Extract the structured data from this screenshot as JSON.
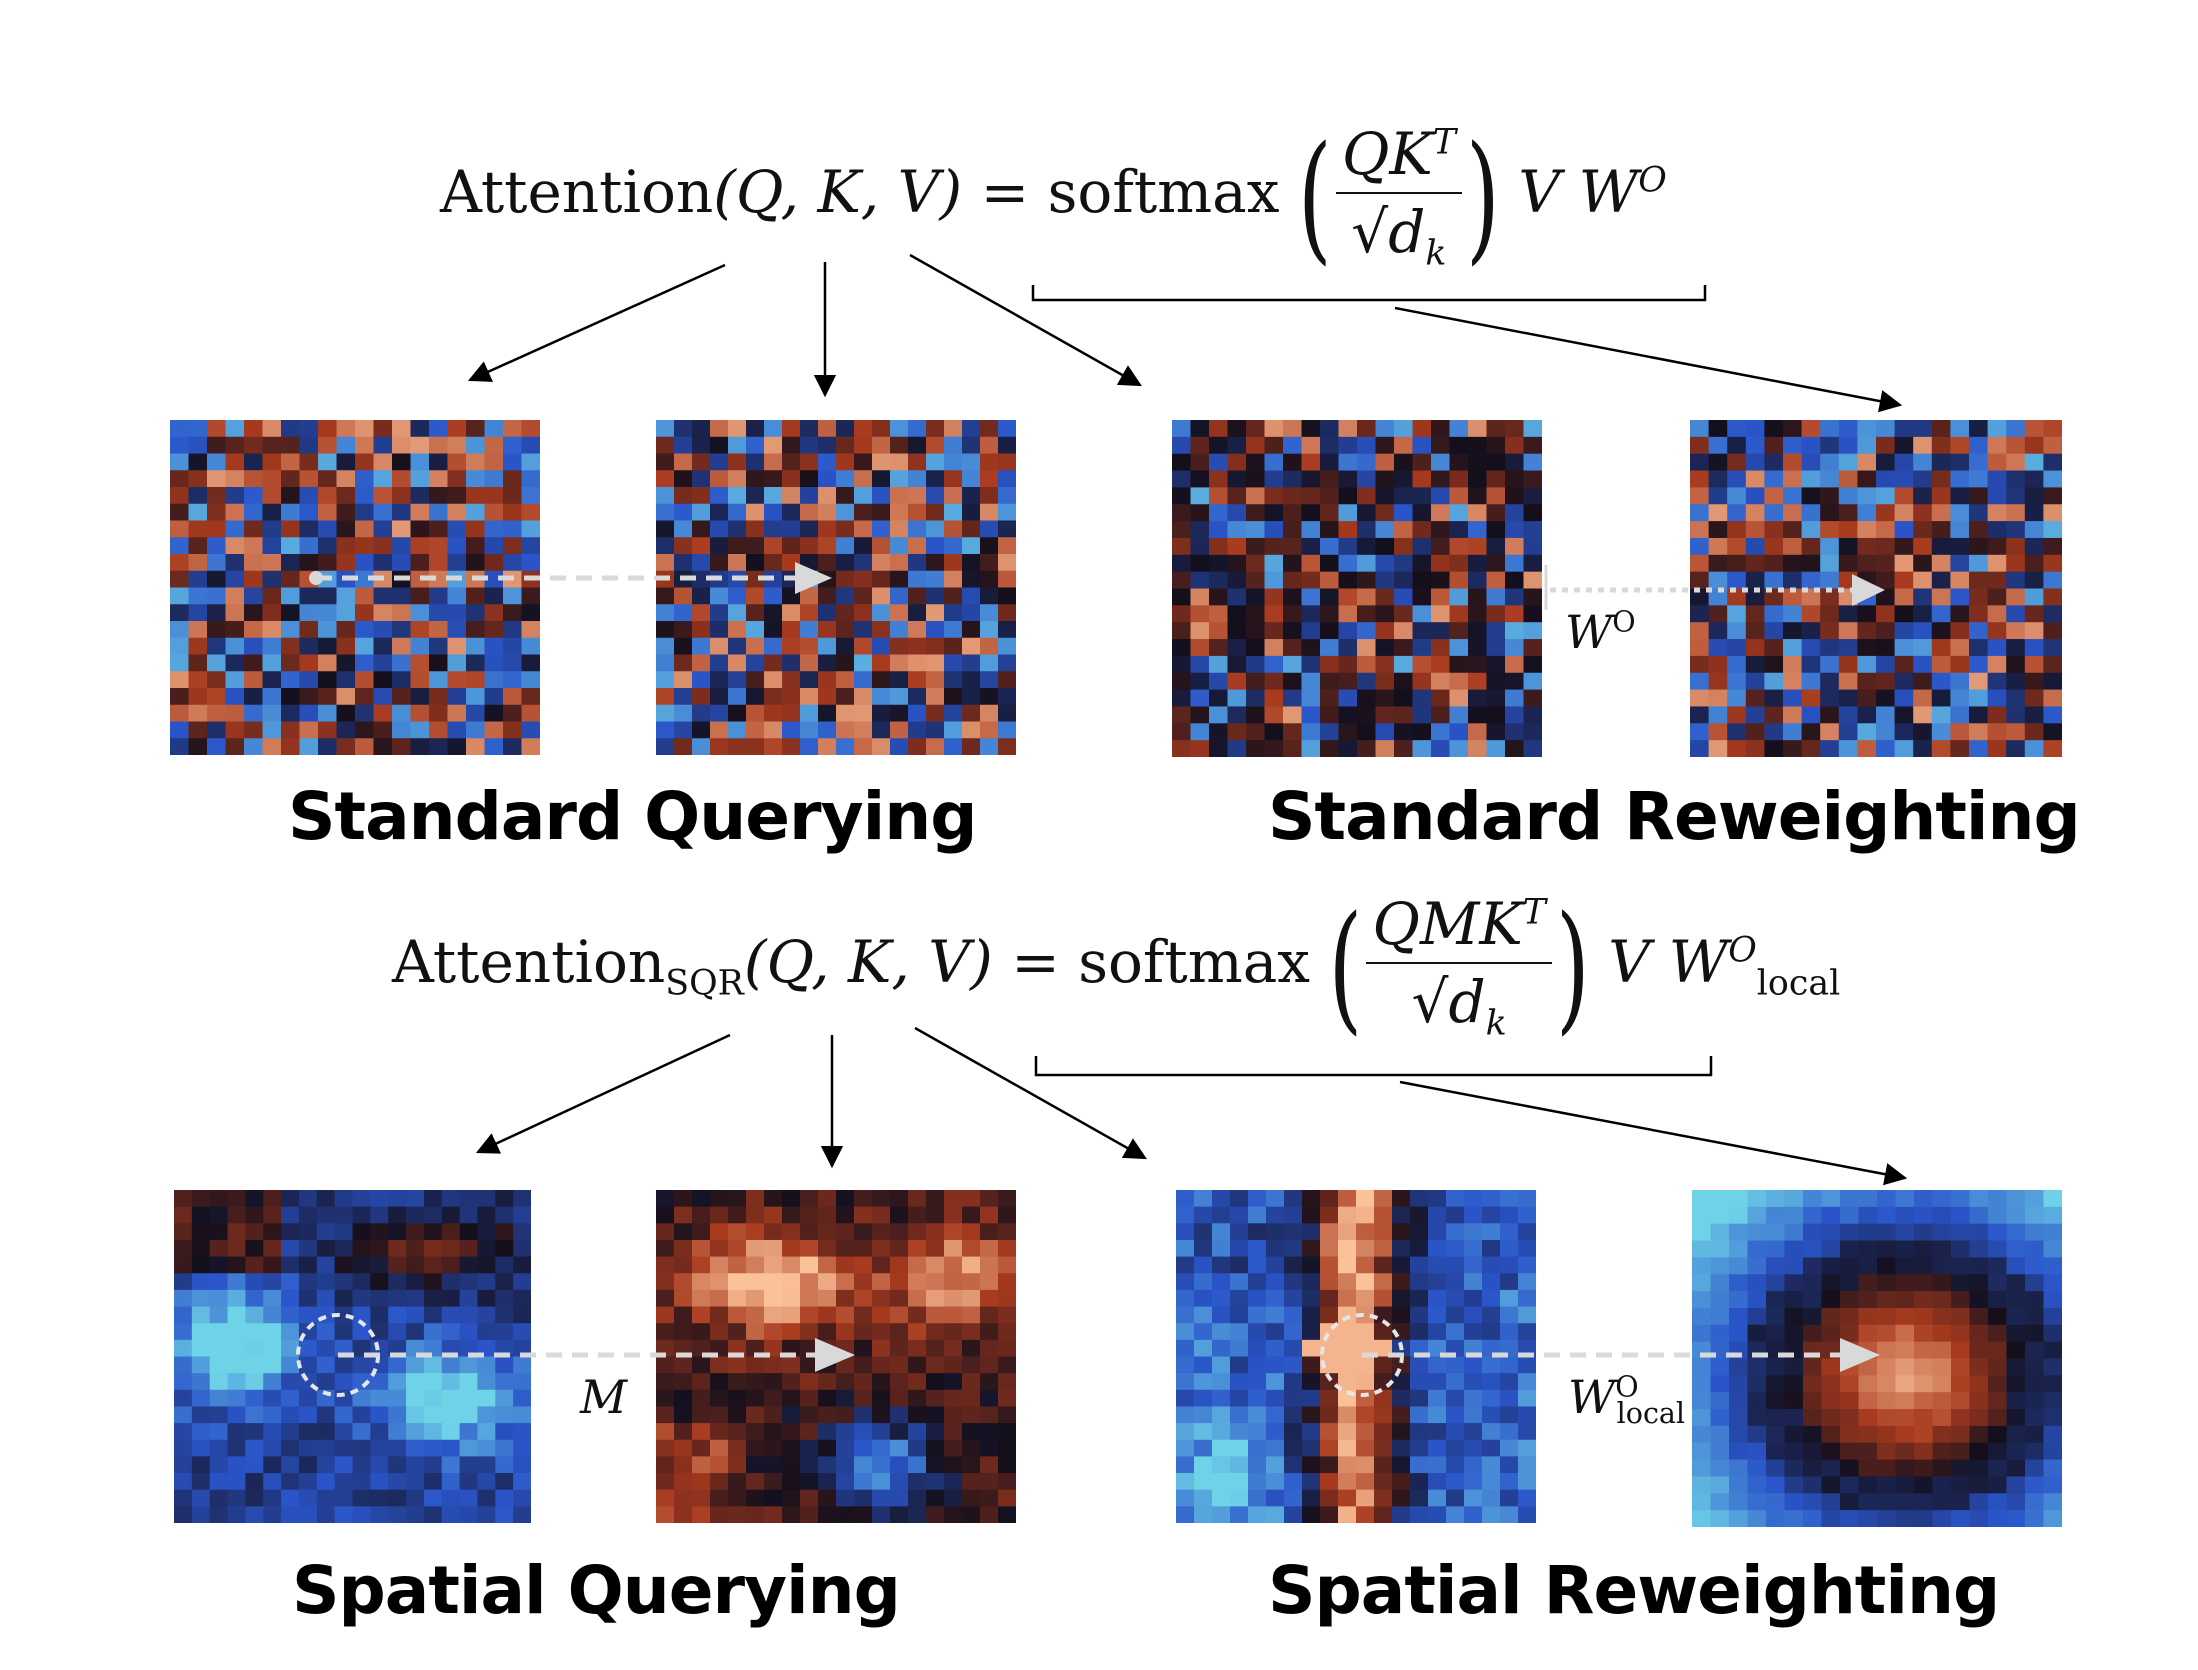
{
  "equations": {
    "standard": {
      "lhs_word": "Attention",
      "args": "(Q, K, V)",
      "equals": "=",
      "fn": "softmax",
      "numerator": "QK",
      "numerator_sup": "T",
      "denominator": "√d",
      "denominator_sub": "k",
      "tail_v": "V",
      "tail_w": "W",
      "tail_w_sup": "O",
      "tail_w_sub": ""
    },
    "sqr": {
      "lhs_word": "Attention",
      "lhs_sub": "SQR",
      "args": "(Q, K, V)",
      "equals": "=",
      "fn": "softmax",
      "numerator": "QMK",
      "numerator_sup": "T",
      "denominator": "√d",
      "denominator_sub": "k",
      "tail_v": "V",
      "tail_w": "W",
      "tail_w_sup": "O",
      "tail_w_sub": "local"
    }
  },
  "section_titles": {
    "standard_querying": "Standard Querying",
    "standard_reweighting": "Standard Reweighting",
    "spatial_querying": "Spatial Querying",
    "spatial_reweighting": "Spatial Reweighting"
  },
  "arrow_labels": {
    "wo": {
      "base": "W",
      "sup": "O",
      "sub": ""
    },
    "m": {
      "base": "M"
    },
    "wo_local": {
      "base": "W",
      "sup": "O",
      "sub": "local"
    }
  },
  "colormap": {
    "low": "#6fd3e8",
    "mid_low": "#2a55c9",
    "mid": "#140f1c",
    "mid_high": "#a83a1e",
    "high": "#fbc29a"
  },
  "heatmap_grid": 20,
  "heatmaps": [
    {
      "id": "std-query-1",
      "pattern": "noise",
      "seed": 11
    },
    {
      "id": "std-query-2",
      "pattern": "noise",
      "seed": 23
    },
    {
      "id": "std-reweight-1",
      "pattern": "noise-dark",
      "seed": 37
    },
    {
      "id": "std-reweight-2",
      "pattern": "noise",
      "seed": 51
    },
    {
      "id": "spa-query-1",
      "pattern": "blobs-blue",
      "seed": 5
    },
    {
      "id": "spa-query-2",
      "pattern": "blobs-warm",
      "seed": 9
    },
    {
      "id": "spa-reweight-1",
      "pattern": "column",
      "seed": 13
    },
    {
      "id": "spa-reweight-2",
      "pattern": "radial",
      "seed": 17
    }
  ]
}
